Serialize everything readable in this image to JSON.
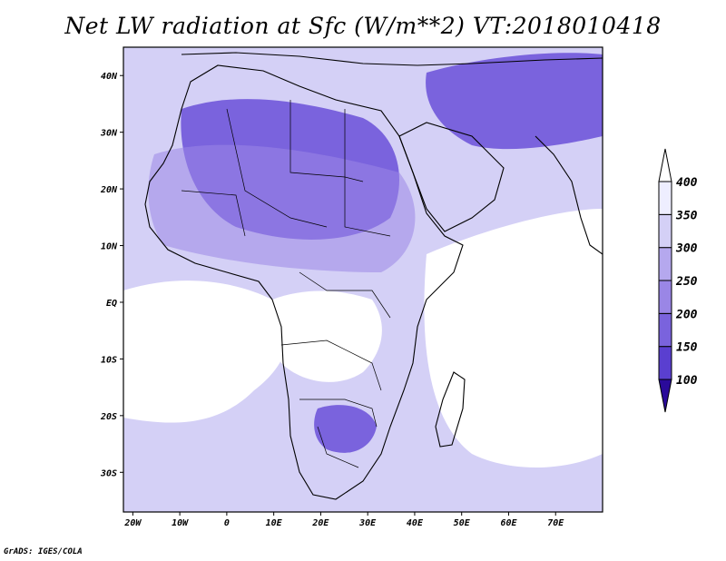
{
  "title": "Net LW radiation at Sfc (W/m**2) VT:2018010418",
  "credit": "GrADS: IGES/COLA",
  "map": {
    "lon_range": [
      -22,
      80
    ],
    "lat_range": [
      -37,
      45
    ],
    "x_ticks": [
      {
        "lon": -20,
        "label": "20W"
      },
      {
        "lon": -10,
        "label": "10W"
      },
      {
        "lon": 0,
        "label": "0"
      },
      {
        "lon": 10,
        "label": "10E"
      },
      {
        "lon": 20,
        "label": "20E"
      },
      {
        "lon": 30,
        "label": "30E"
      },
      {
        "lon": 40,
        "label": "40E"
      },
      {
        "lon": 50,
        "label": "50E"
      },
      {
        "lon": 60,
        "label": "60E"
      },
      {
        "lon": 70,
        "label": "70E"
      }
    ],
    "y_ticks": [
      {
        "lat": 40,
        "label": "40N"
      },
      {
        "lat": 30,
        "label": "30N"
      },
      {
        "lat": 20,
        "label": "20N"
      },
      {
        "lat": 10,
        "label": "10N"
      },
      {
        "lat": 0,
        "label": "EQ"
      },
      {
        "lat": -10,
        "label": "10S"
      },
      {
        "lat": -20,
        "label": "20S"
      },
      {
        "lat": -30,
        "label": "30S"
      }
    ]
  },
  "colorbar": {
    "levels": [
      "100",
      "150",
      "200",
      "250",
      "300",
      "350",
      "400"
    ],
    "colors": [
      "#3c1fa8",
      "#5a3fd0",
      "#7a63dd",
      "#9a86e6",
      "#b5a8ee",
      "#d4d0f6",
      "#eeeeff"
    ],
    "above_color": "#ffffff",
    "below_color": "#2a0a9a"
  },
  "shading_colors": {
    "lt300": "#9a86e6",
    "mid": "#b5a8ee",
    "pale": "#d4d0f6",
    "deep": "#7a63dd",
    "open": "#ffffff"
  }
}
